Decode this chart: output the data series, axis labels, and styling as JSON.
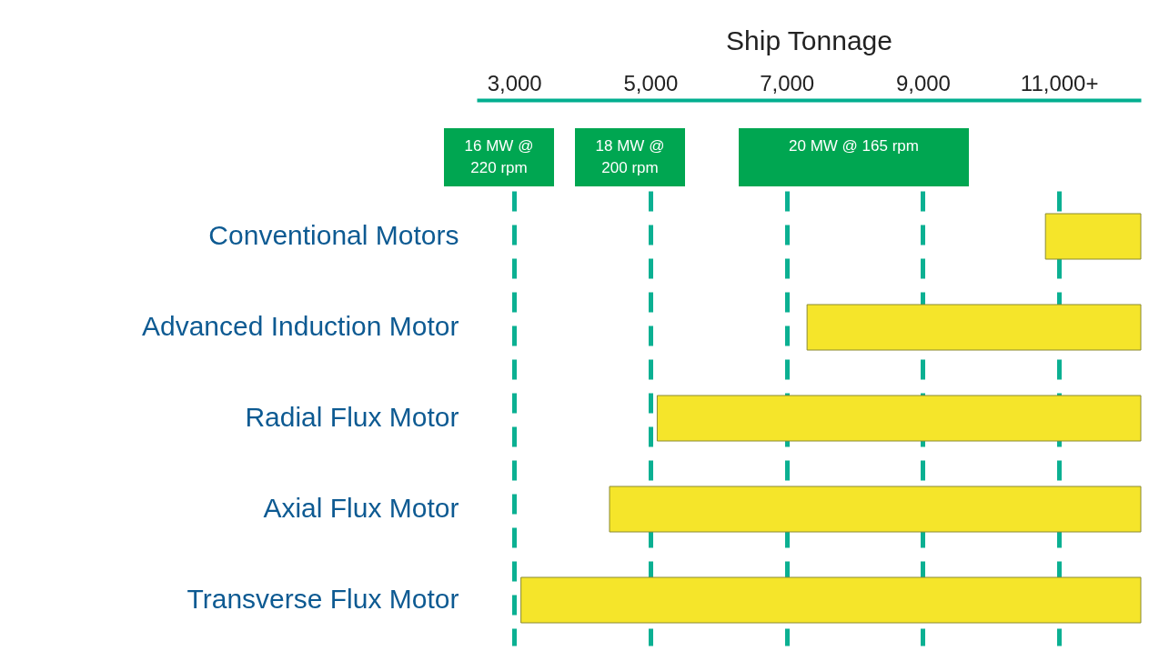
{
  "chart_data": {
    "type": "bar",
    "orientation": "horizontal",
    "xlabel": "Ship Tonnage",
    "categories": [
      "Conventional Motors",
      "Advanced Induction Motor",
      "Radial Flux Motor",
      "Axial Flux Motor",
      "Transverse Flux Motor"
    ],
    "base": [
      10800,
      7300,
      5100,
      4400,
      3100
    ],
    "values": [
      1400,
      4900,
      7100,
      7800,
      9100
    ],
    "color": "#f5e52a",
    "xlim": [
      2450,
      12200
    ],
    "xticks": [
      {
        "value": 3000,
        "label": "3,000"
      },
      {
        "value": 5000,
        "label": "5,000"
      },
      {
        "value": 7000,
        "label": "7,000"
      },
      {
        "value": 9000,
        "label": "9,000"
      },
      {
        "value": 11000,
        "label": "11,000+"
      }
    ],
    "grid": "x",
    "annotations": [
      "16 MW @ 220 rpm",
      "18 MW @ 200 rpm",
      "20 MW @ 165 rpm"
    ]
  }
}
